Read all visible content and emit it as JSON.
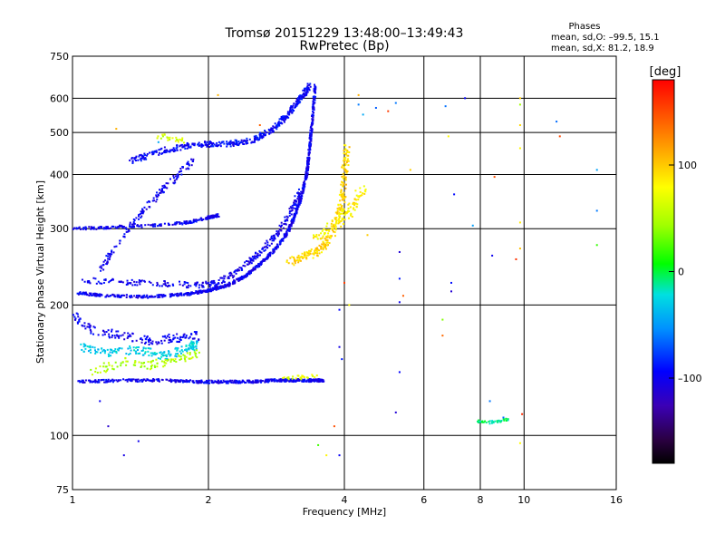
{
  "chart_data": {
    "type": "scatter",
    "title": "Tromsø 20151229 13:48:00–13:49:43",
    "subtitle": "RwPretec (Bp)",
    "xlabel": "Frequency [MHz]",
    "ylabel": "Stationary phase Virtual Height [km]",
    "x_scale": "log",
    "y_scale": "log",
    "xlim": [
      1,
      16
    ],
    "ylim": [
      75,
      750
    ],
    "grid": true,
    "x_ticks": [
      1,
      2,
      4,
      6,
      8,
      10,
      16
    ],
    "x_tick_labels": [
      "1",
      "2",
      "4",
      "6",
      "8",
      "10",
      "16"
    ],
    "y_ticks": [
      75,
      100,
      200,
      300,
      400,
      500,
      600,
      750
    ],
    "y_tick_labels": [
      "75",
      "100",
      "200",
      "300",
      "400",
      "500",
      "600",
      "750"
    ],
    "stats": {
      "title": "Phases",
      "line1": "mean, sd,O: –99.5, 15.1",
      "line2": "mean, sd,X:  81.2, 18.9"
    },
    "colorbar": {
      "label": "[deg]",
      "range": [
        -180,
        180
      ],
      "ticks": [
        100,
        0,
        -100
      ],
      "tick_labels": [
        "100",
        "0",
        "–100"
      ]
    },
    "series": [
      {
        "kind": "curve",
        "phase": -100,
        "jitter": 0.01,
        "count": 60,
        "points": [
          [
            1.02,
            213
          ],
          [
            1.2,
            210
          ],
          [
            1.5,
            209
          ],
          [
            1.8,
            212
          ],
          [
            2.0,
            216
          ],
          [
            2.2,
            222
          ],
          [
            2.4,
            232
          ],
          [
            2.6,
            248
          ],
          [
            2.8,
            268
          ],
          [
            3.0,
            295
          ],
          [
            3.1,
            320
          ],
          [
            3.2,
            350
          ],
          [
            3.3,
            400
          ],
          [
            3.35,
            460
          ],
          [
            3.4,
            540
          ],
          [
            3.45,
            640
          ]
        ]
      },
      {
        "kind": "curve",
        "phase": -100,
        "jitter": 0.02,
        "count": 30,
        "points": [
          [
            1.05,
            228
          ],
          [
            1.3,
            226
          ],
          [
            1.6,
            224
          ],
          [
            1.9,
            222
          ],
          [
            2.1,
            225
          ],
          [
            2.3,
            238
          ],
          [
            2.5,
            255
          ],
          [
            2.7,
            275
          ],
          [
            2.9,
            300
          ],
          [
            3.1,
            340
          ],
          [
            3.2,
            370
          ]
        ]
      },
      {
        "kind": "curve",
        "phase": -100,
        "jitter": 0.01,
        "count": 40,
        "points": [
          [
            1.0,
            300
          ],
          [
            1.2,
            302
          ],
          [
            1.5,
            305
          ],
          [
            1.8,
            310
          ],
          [
            2.0,
            318
          ],
          [
            2.1,
            322
          ]
        ]
      },
      {
        "kind": "curve",
        "phase": -100,
        "jitter": 0.02,
        "count": 30,
        "points": [
          [
            1.15,
            240
          ],
          [
            1.25,
            275
          ],
          [
            1.4,
            320
          ],
          [
            1.55,
            360
          ],
          [
            1.7,
            395
          ],
          [
            1.85,
            430
          ]
        ]
      },
      {
        "kind": "curve",
        "phase": -95,
        "jitter": 0.02,
        "count": 55,
        "points": [
          [
            1.35,
            430
          ],
          [
            1.6,
            455
          ],
          [
            1.9,
            470
          ],
          [
            2.2,
            470
          ],
          [
            2.5,
            480
          ],
          [
            2.8,
            510
          ],
          [
            3.0,
            550
          ],
          [
            3.2,
            600
          ],
          [
            3.35,
            640
          ]
        ]
      },
      {
        "kind": "curve",
        "phase": 95,
        "jitter": 0.03,
        "count": 40,
        "points": [
          [
            3.0,
            250
          ],
          [
            3.3,
            260
          ],
          [
            3.6,
            270
          ],
          [
            3.8,
            300
          ],
          [
            3.95,
            340
          ],
          [
            4.0,
            400
          ],
          [
            4.05,
            460
          ]
        ]
      },
      {
        "kind": "curve",
        "phase": 85,
        "jitter": 0.04,
        "count": 25,
        "points": [
          [
            3.4,
            280
          ],
          [
            3.7,
            300
          ],
          [
            4.0,
            320
          ],
          [
            4.2,
            340
          ],
          [
            4.4,
            370
          ]
        ]
      },
      {
        "kind": "curve",
        "phase": -100,
        "jitter": 0.01,
        "count": 55,
        "points": [
          [
            1.03,
            133
          ],
          [
            1.3,
            134
          ],
          [
            1.6,
            134
          ],
          [
            1.9,
            133
          ],
          [
            2.2,
            133
          ],
          [
            2.5,
            133
          ],
          [
            2.8,
            134
          ],
          [
            3.1,
            134
          ],
          [
            3.4,
            134
          ],
          [
            3.6,
            134
          ]
        ]
      },
      {
        "kind": "curve",
        "phase": 70,
        "jitter": 0.015,
        "count": 12,
        "points": [
          [
            2.9,
            136
          ],
          [
            3.2,
            136
          ],
          [
            3.5,
            137
          ]
        ]
      },
      {
        "kind": "curve",
        "phase": -30,
        "jitter": 0.03,
        "count": 35,
        "points": [
          [
            1.05,
            160
          ],
          [
            1.2,
            155
          ],
          [
            1.4,
            158
          ],
          [
            1.6,
            152
          ],
          [
            1.8,
            160
          ],
          [
            1.9,
            162
          ]
        ]
      },
      {
        "kind": "curve",
        "phase": 50,
        "jitter": 0.03,
        "count": 25,
        "points": [
          [
            1.1,
            140
          ],
          [
            1.3,
            148
          ],
          [
            1.5,
            145
          ],
          [
            1.7,
            150
          ],
          [
            1.9,
            155
          ]
        ]
      },
      {
        "kind": "curve",
        "phase": -100,
        "jitter": 0.03,
        "count": 30,
        "points": [
          [
            1.0,
            190
          ],
          [
            1.1,
            175
          ],
          [
            1.3,
            170
          ],
          [
            1.5,
            165
          ],
          [
            1.7,
            168
          ],
          [
            1.9,
            170
          ]
        ]
      },
      {
        "kind": "curve",
        "phase": 60,
        "jitter": 0.02,
        "count": 12,
        "points": [
          [
            1.55,
            490
          ],
          [
            1.65,
            485
          ],
          [
            1.8,
            480
          ]
        ]
      },
      {
        "kind": "curve",
        "phase": -10,
        "jitter": 0.01,
        "count": 14,
        "points": [
          [
            7.9,
            108
          ],
          [
            8.3,
            107
          ],
          [
            8.8,
            108
          ],
          [
            9.2,
            109
          ]
        ]
      },
      {
        "kind": "points",
        "phase": -100,
        "points": [
          [
            1.15,
            120
          ],
          [
            1.2,
            105
          ],
          [
            1.4,
            97
          ],
          [
            1.3,
            90
          ],
          [
            3.9,
            160
          ],
          [
            3.9,
            195
          ],
          [
            3.95,
            150
          ],
          [
            5.3,
            140
          ],
          [
            5.3,
            265
          ],
          [
            5.3,
            230
          ],
          [
            5.3,
            203
          ],
          [
            6.9,
            215
          ],
          [
            6.9,
            225
          ],
          [
            8.5,
            260
          ],
          [
            3.9,
            90
          ],
          [
            5.2,
            113
          ],
          [
            7.0,
            360
          ],
          [
            7.4,
            600
          ]
        ]
      },
      {
        "kind": "points",
        "phase": 95,
        "points": [
          [
            9.8,
            600
          ],
          [
            9.8,
            460
          ],
          [
            9.8,
            310
          ],
          [
            9.8,
            270
          ],
          [
            9.8,
            96
          ],
          [
            4.3,
            610
          ],
          [
            6.8,
            490
          ],
          [
            5.6,
            410
          ],
          [
            2.1,
            610
          ],
          [
            1.25,
            510
          ],
          [
            4.5,
            290
          ],
          [
            4.1,
            200
          ],
          [
            9.8,
            520
          ],
          [
            3.65,
            90
          ]
        ]
      },
      {
        "kind": "points",
        "phase": -55,
        "points": [
          [
            4.3,
            580
          ],
          [
            4.7,
            570
          ],
          [
            6.7,
            575
          ],
          [
            14.5,
            330
          ],
          [
            8.4,
            120
          ],
          [
            9.0,
            110
          ],
          [
            11.8,
            530
          ],
          [
            14.5,
            410
          ],
          [
            7.7,
            305
          ],
          [
            5.2,
            585
          ],
          [
            1.55,
            475
          ],
          [
            4.4,
            550
          ]
        ]
      },
      {
        "kind": "points",
        "phase": 150,
        "points": [
          [
            4.0,
            225
          ],
          [
            5.4,
            210
          ],
          [
            6.6,
            170
          ],
          [
            8.6,
            395
          ],
          [
            9.6,
            255
          ],
          [
            5.0,
            560
          ],
          [
            2.6,
            520
          ],
          [
            12.0,
            490
          ],
          [
            3.8,
            105
          ],
          [
            9.9,
            112
          ]
        ]
      },
      {
        "kind": "points",
        "phase": 30,
        "points": [
          [
            9.8,
            580
          ],
          [
            14.5,
            275
          ],
          [
            3.5,
            95
          ],
          [
            6.6,
            185
          ]
        ]
      }
    ]
  }
}
